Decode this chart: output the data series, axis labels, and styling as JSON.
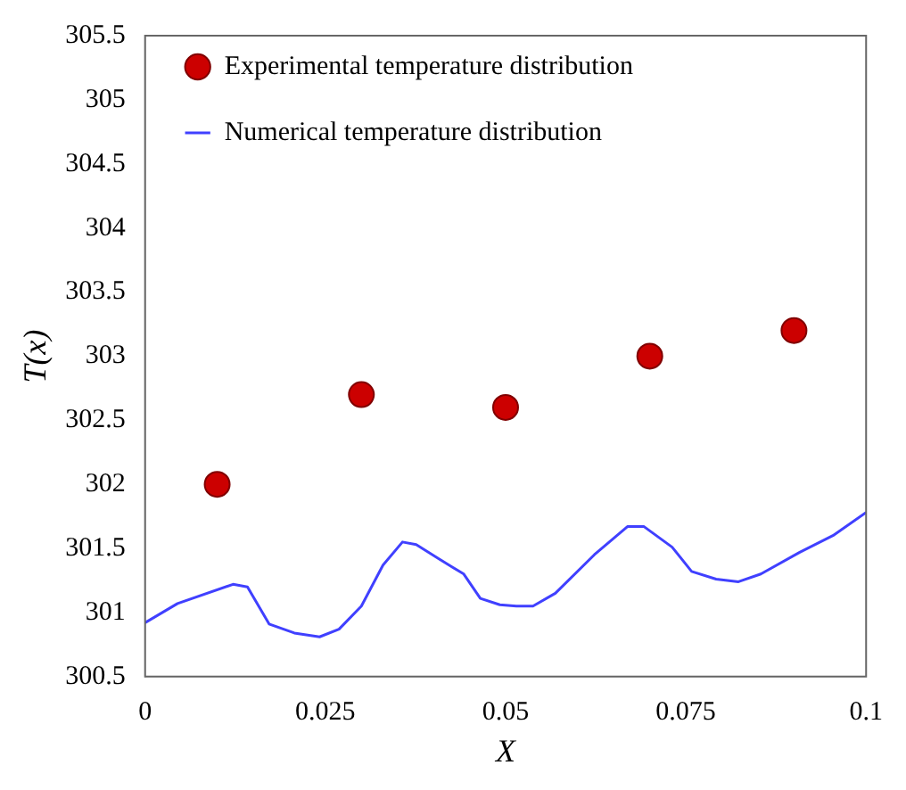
{
  "chart_data": {
    "type": "scatter",
    "xlabel": "X",
    "ylabel": "T(x)",
    "xlim": [
      0,
      0.1
    ],
    "xticks": [
      0,
      0.025,
      0.05,
      0.075,
      0.1
    ],
    "ylim": [
      300.5,
      305.5
    ],
    "yticks": [
      300.5,
      301,
      301.5,
      302,
      302.5,
      303,
      303.5,
      304,
      304.5,
      305,
      305.5
    ],
    "grid": false,
    "legend": "top left",
    "series": [
      {
        "name": "Experimental temperature distribution",
        "type": "scatter",
        "color": "#cc0000",
        "marker": "circle",
        "x": [
          0.01,
          0.03,
          0.05,
          0.07,
          0.09
        ],
        "values": [
          302,
          302.7,
          302.6,
          303,
          303.2
        ]
      },
      {
        "name": "Numerical temperature distribution",
        "type": "line",
        "color": "#4040ff",
        "marker": "none",
        "line_style": "solid",
        "x": [
          0,
          0.0045,
          0.0122,
          0.0142,
          0.0172,
          0.0207,
          0.0242,
          0.0269,
          0.03,
          0.033,
          0.0357,
          0.0376,
          0.0407,
          0.0442,
          0.0465,
          0.0492,
          0.0515,
          0.0538,
          0.0569,
          0.0623,
          0.0669,
          0.0692,
          0.0731,
          0.0758,
          0.0792,
          0.0823,
          0.0854,
          0.0908,
          0.0954,
          0.1
        ],
        "values": [
          300.92,
          301.07,
          301.22,
          301.2,
          300.91,
          300.84,
          300.81,
          300.87,
          301.05,
          301.37,
          301.55,
          301.53,
          301.42,
          301.3,
          301.11,
          301.06,
          301.05,
          301.05,
          301.15,
          301.45,
          301.67,
          301.67,
          301.51,
          301.32,
          301.26,
          301.24,
          301.3,
          301.47,
          301.6,
          301.78
        ]
      }
    ]
  }
}
